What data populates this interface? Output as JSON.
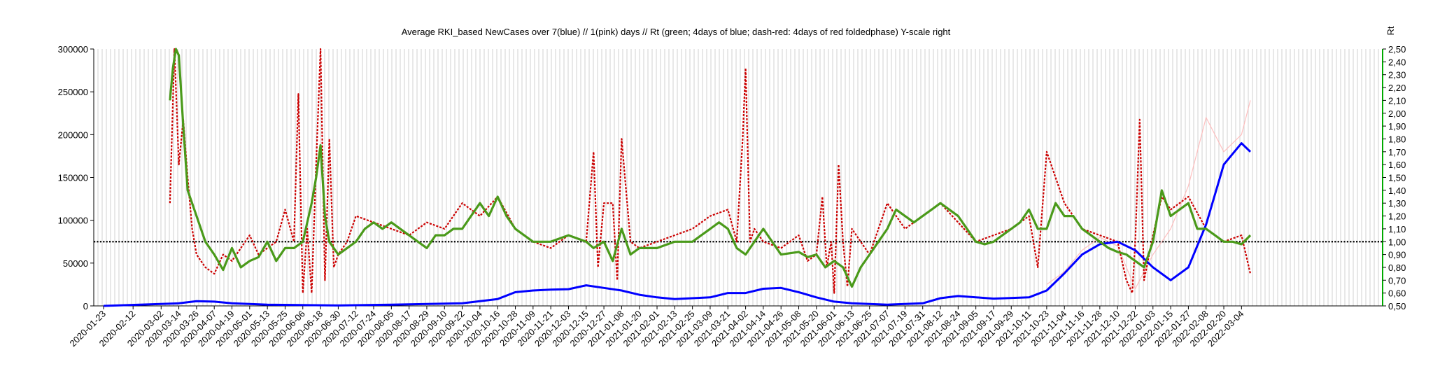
{
  "chart_data": {
    "type": "line",
    "title": "Average RKI_based NewCases over 7(blue) // 1(pink) days //  Rt (green; 4days of blue; dash-red: 4days of red foldedphase) Y-scale right",
    "y2label": "Rt",
    "ylim": [
      0,
      300000
    ],
    "y2lim": [
      0.5,
      2.5
    ],
    "yticks": [
      "0",
      "50000",
      "100000",
      "150000",
      "200000",
      "250000",
      "300000"
    ],
    "y2ticks": [
      "0,50",
      "0,60",
      "0,70",
      "0,80",
      "0,90",
      "1,00",
      "1,10",
      "1,20",
      "1,30",
      "1,40",
      "1,50",
      "1,60",
      "1,70",
      "1,80",
      "1,90",
      "2,00",
      "2,10",
      "2,20",
      "2,30",
      "2,40",
      "2,50"
    ],
    "xticks": [
      "2020-01-23",
      "2020-02-12",
      "2020-03-02",
      "2020-03-14",
      "2020-03-26",
      "2020-04-07",
      "2020-04-19",
      "2020-05-01",
      "2020-05-13",
      "2020-05-25",
      "2020-06-06",
      "2020-06-18",
      "2020-06-30",
      "2020-07-12",
      "2020-07-24",
      "2020-08-05",
      "2020-08-17",
      "2020-08-29",
      "2020-09-10",
      "2020-09-22",
      "2020-10-04",
      "2020-10-16",
      "2020-10-28",
      "2020-11-09",
      "2020-11-21",
      "2020-12-03",
      "2020-12-15",
      "2020-12-27",
      "2021-01-08",
      "2021-01-20",
      "2021-02-01",
      "2021-02-13",
      "2021-02-25",
      "2021-03-09",
      "2021-03-21",
      "2021-04-02",
      "2021-04-14",
      "2021-04-26",
      "2021-05-08",
      "2021-05-20",
      "2021-06-01",
      "2021-06-13",
      "2021-06-25",
      "2021-07-07",
      "2021-07-19",
      "2021-07-31",
      "2021-08-12",
      "2021-08-24",
      "2021-09-05",
      "2021-09-17",
      "2021-09-29",
      "2021-10-11",
      "2021-10-23",
      "2021-11-04",
      "2021-11-16",
      "2021-11-28",
      "2021-12-10",
      "2021-12-22",
      "2022-01-03",
      "2022-01-15",
      "2022-01-27",
      "2022-02-08",
      "2022-02-20",
      "2022-03-04"
    ],
    "reference_line": {
      "axis": "y2",
      "value": 1.0,
      "style": "dotted",
      "color": "#000000"
    },
    "grid": "vertical",
    "series": [
      {
        "axis": "y",
        "color": "#0000ff",
        "x": [
          "2020-01-23",
          "2020-03-14",
          "2020-03-26",
          "2020-04-07",
          "2020-04-19",
          "2020-05-13",
          "2020-06-30",
          "2020-08-05",
          "2020-09-22",
          "2020-10-16",
          "2020-10-28",
          "2020-11-09",
          "2020-11-21",
          "2020-12-03",
          "2020-12-15",
          "2020-12-27",
          "2021-01-08",
          "2021-01-20",
          "2021-02-01",
          "2021-02-13",
          "2021-03-09",
          "2021-03-21",
          "2021-04-02",
          "2021-04-14",
          "2021-04-26",
          "2021-05-08",
          "2021-05-20",
          "2021-06-01",
          "2021-06-13",
          "2021-07-07",
          "2021-07-31",
          "2021-08-12",
          "2021-08-24",
          "2021-09-17",
          "2021-10-11",
          "2021-10-23",
          "2021-11-04",
          "2021-11-16",
          "2021-11-28",
          "2021-12-10",
          "2021-12-22",
          "2022-01-03",
          "2022-01-15",
          "2022-01-27",
          "2022-02-08",
          "2022-02-20",
          "2022-03-04",
          "2022-03-10"
        ],
        "values": [
          0,
          3000,
          5500,
          5000,
          3000,
          1500,
          500,
          1500,
          3000,
          8000,
          16000,
          18000,
          19000,
          19500,
          24000,
          21000,
          18000,
          13000,
          10000,
          8000,
          10000,
          15000,
          15000,
          20000,
          21000,
          16000,
          10000,
          5000,
          3000,
          1500,
          3000,
          9000,
          11500,
          8500,
          10000,
          18000,
          38000,
          60000,
          72000,
          75000,
          65000,
          45000,
          30000,
          45000,
          95000,
          165000,
          190000,
          180000
        ]
      },
      {
        "axis": "y2",
        "color": "#cc0000",
        "style": "dash",
        "x": [
          "2020-03-08",
          "2020-03-11",
          "2020-03-14",
          "2020-03-17",
          "2020-03-20",
          "2020-03-23",
          "2020-03-26",
          "2020-04-01",
          "2020-04-07",
          "2020-04-13",
          "2020-04-19",
          "2020-04-25",
          "2020-05-01",
          "2020-05-07",
          "2020-05-13",
          "2020-05-19",
          "2020-05-25",
          "2020-05-31",
          "2020-06-03",
          "2020-06-06",
          "2020-06-09",
          "2020-06-12",
          "2020-06-15",
          "2020-06-18",
          "2020-06-21",
          "2020-06-24",
          "2020-06-27",
          "2020-06-30",
          "2020-07-06",
          "2020-07-12",
          "2020-07-24",
          "2020-08-05",
          "2020-08-17",
          "2020-08-29",
          "2020-09-10",
          "2020-09-22",
          "2020-10-04",
          "2020-10-16",
          "2020-10-28",
          "2020-11-09",
          "2020-11-21",
          "2020-12-03",
          "2020-12-15",
          "2020-12-20",
          "2020-12-23",
          "2020-12-27",
          "2021-01-02",
          "2021-01-05",
          "2021-01-08",
          "2021-01-14",
          "2021-01-20",
          "2021-02-01",
          "2021-02-13",
          "2021-02-25",
          "2021-03-09",
          "2021-03-21",
          "2021-03-27",
          "2021-03-31",
          "2021-04-02",
          "2021-04-05",
          "2021-04-08",
          "2021-04-14",
          "2021-04-26",
          "2021-05-08",
          "2021-05-14",
          "2021-05-20",
          "2021-05-24",
          "2021-05-27",
          "2021-05-30",
          "2021-06-01",
          "2021-06-04",
          "2021-06-07",
          "2021-06-10",
          "2021-06-13",
          "2021-06-19",
          "2021-06-25",
          "2021-07-07",
          "2021-07-19",
          "2021-07-31",
          "2021-08-12",
          "2021-08-24",
          "2021-09-05",
          "2021-09-17",
          "2021-09-29",
          "2021-10-11",
          "2021-10-17",
          "2021-10-23",
          "2021-11-04",
          "2021-11-16",
          "2021-11-28",
          "2021-12-10",
          "2021-12-16",
          "2021-12-20",
          "2021-12-22",
          "2021-12-25",
          "2021-12-28",
          "2022-01-03",
          "2022-01-09",
          "2022-01-15",
          "2022-01-27",
          "2022-02-08",
          "2022-02-20",
          "2022-03-04",
          "2022-03-10"
        ],
        "values": [
          1.3,
          2.5,
          1.6,
          1.95,
          1.5,
          1.1,
          0.9,
          0.8,
          0.75,
          0.9,
          0.85,
          0.95,
          1.05,
          0.9,
          0.95,
          1.0,
          1.25,
          1.0,
          2.15,
          0.6,
          1.1,
          0.6,
          1.6,
          2.6,
          0.7,
          1.8,
          0.8,
          0.9,
          1.0,
          1.2,
          1.15,
          1.1,
          1.05,
          1.15,
          1.1,
          1.3,
          1.2,
          1.35,
          1.1,
          1.0,
          0.95,
          1.05,
          1.0,
          1.7,
          0.8,
          1.3,
          1.3,
          0.7,
          1.8,
          1.0,
          0.95,
          1.0,
          1.05,
          1.1,
          1.2,
          1.25,
          1.0,
          1.8,
          2.35,
          1.0,
          1.1,
          1.0,
          0.95,
          1.05,
          0.85,
          0.9,
          1.35,
          0.8,
          1.0,
          0.6,
          1.6,
          1.0,
          0.65,
          1.1,
          1.0,
          0.9,
          1.3,
          1.1,
          1.2,
          1.3,
          1.15,
          1.0,
          1.05,
          1.1,
          1.2,
          0.8,
          1.7,
          1.3,
          1.1,
          1.05,
          1.0,
          0.7,
          0.6,
          1.0,
          1.95,
          0.7,
          1.05,
          1.35,
          1.25,
          1.35,
          1.1,
          1.0,
          1.05,
          0.75
        ]
      },
      {
        "axis": "y",
        "color": "#ffb0b0",
        "x": [
          "2021-10-23",
          "2021-11-04",
          "2021-11-16",
          "2021-11-28",
          "2021-12-10",
          "2021-12-22",
          "2022-01-03",
          "2022-01-15",
          "2022-01-27",
          "2022-02-08",
          "2022-02-20",
          "2022-03-04",
          "2022-03-10"
        ],
        "values": [
          25000,
          40000,
          65000,
          80000,
          70000,
          20000,
          60000,
          90000,
          140000,
          220000,
          180000,
          200000,
          240000
        ]
      },
      {
        "axis": "y2",
        "color": "#4a9a1a",
        "x": [
          "2020-03-08",
          "2020-03-10",
          "2020-03-12",
          "2020-03-14",
          "2020-03-17",
          "2020-03-20",
          "2020-03-26",
          "2020-04-01",
          "2020-04-07",
          "2020-04-13",
          "2020-04-19",
          "2020-04-25",
          "2020-05-01",
          "2020-05-07",
          "2020-05-13",
          "2020-05-19",
          "2020-05-25",
          "2020-05-31",
          "2020-06-06",
          "2020-06-12",
          "2020-06-15",
          "2020-06-18",
          "2020-06-21",
          "2020-06-24",
          "2020-06-30",
          "2020-07-06",
          "2020-07-12",
          "2020-07-18",
          "2020-07-24",
          "2020-07-30",
          "2020-08-05",
          "2020-08-11",
          "2020-08-17",
          "2020-08-23",
          "2020-08-29",
          "2020-09-04",
          "2020-09-10",
          "2020-09-16",
          "2020-09-22",
          "2020-09-28",
          "2020-10-04",
          "2020-10-10",
          "2020-10-16",
          "2020-10-22",
          "2020-10-28",
          "2020-11-09",
          "2020-11-21",
          "2020-12-03",
          "2020-12-15",
          "2020-12-20",
          "2020-12-27",
          "2021-01-02",
          "2021-01-08",
          "2021-01-14",
          "2021-01-20",
          "2021-02-01",
          "2021-02-13",
          "2021-02-25",
          "2021-03-03",
          "2021-03-09",
          "2021-03-15",
          "2021-03-21",
          "2021-03-27",
          "2021-04-02",
          "2021-04-08",
          "2021-04-14",
          "2021-04-20",
          "2021-04-26",
          "2021-05-08",
          "2021-05-14",
          "2021-05-20",
          "2021-05-26",
          "2021-06-01",
          "2021-06-07",
          "2021-06-13",
          "2021-06-19",
          "2021-06-25",
          "2021-07-01",
          "2021-07-07",
          "2021-07-13",
          "2021-07-19",
          "2021-07-25",
          "2021-07-31",
          "2021-08-06",
          "2021-08-12",
          "2021-08-18",
          "2021-08-24",
          "2021-08-30",
          "2021-09-05",
          "2021-09-11",
          "2021-09-17",
          "2021-09-23",
          "2021-09-29",
          "2021-10-05",
          "2021-10-11",
          "2021-10-17",
          "2021-10-23",
          "2021-10-29",
          "2021-11-04",
          "2021-11-10",
          "2021-11-16",
          "2021-11-22",
          "2021-11-28",
          "2021-12-04",
          "2021-12-10",
          "2021-12-16",
          "2021-12-22",
          "2021-12-28",
          "2022-01-03",
          "2022-01-09",
          "2022-01-15",
          "2022-01-21",
          "2022-01-27",
          "2022-02-02",
          "2022-02-08",
          "2022-02-14",
          "2022-02-20",
          "2022-02-26",
          "2022-03-04",
          "2022-03-10"
        ],
        "values": [
          2.1,
          2.35,
          2.5,
          2.45,
          1.9,
          1.4,
          1.2,
          1.0,
          0.9,
          0.78,
          0.95,
          0.8,
          0.85,
          0.88,
          1.0,
          0.85,
          0.95,
          0.95,
          1.0,
          1.3,
          1.5,
          1.75,
          1.2,
          1.0,
          0.9,
          0.95,
          1.0,
          1.1,
          1.15,
          1.1,
          1.15,
          1.1,
          1.05,
          1.0,
          0.95,
          1.05,
          1.05,
          1.1,
          1.1,
          1.2,
          1.3,
          1.2,
          1.35,
          1.2,
          1.1,
          1.0,
          1.0,
          1.05,
          1.0,
          0.95,
          1.0,
          0.85,
          1.1,
          0.9,
          0.95,
          0.95,
          1.0,
          1.0,
          1.05,
          1.1,
          1.15,
          1.1,
          0.95,
          0.9,
          1.0,
          1.1,
          1.0,
          0.9,
          0.92,
          0.88,
          0.9,
          0.8,
          0.85,
          0.8,
          0.65,
          0.8,
          0.9,
          1.0,
          1.1,
          1.25,
          1.2,
          1.15,
          1.2,
          1.25,
          1.3,
          1.25,
          1.2,
          1.1,
          1.0,
          0.98,
          1.0,
          1.05,
          1.1,
          1.15,
          1.25,
          1.1,
          1.1,
          1.3,
          1.2,
          1.2,
          1.1,
          1.05,
          1.0,
          0.95,
          0.92,
          0.9,
          0.85,
          0.8,
          1.0,
          1.4,
          1.2,
          1.25,
          1.3,
          1.1,
          1.1,
          1.05,
          1.0,
          1.0,
          0.98,
          1.05
        ]
      }
    ]
  }
}
